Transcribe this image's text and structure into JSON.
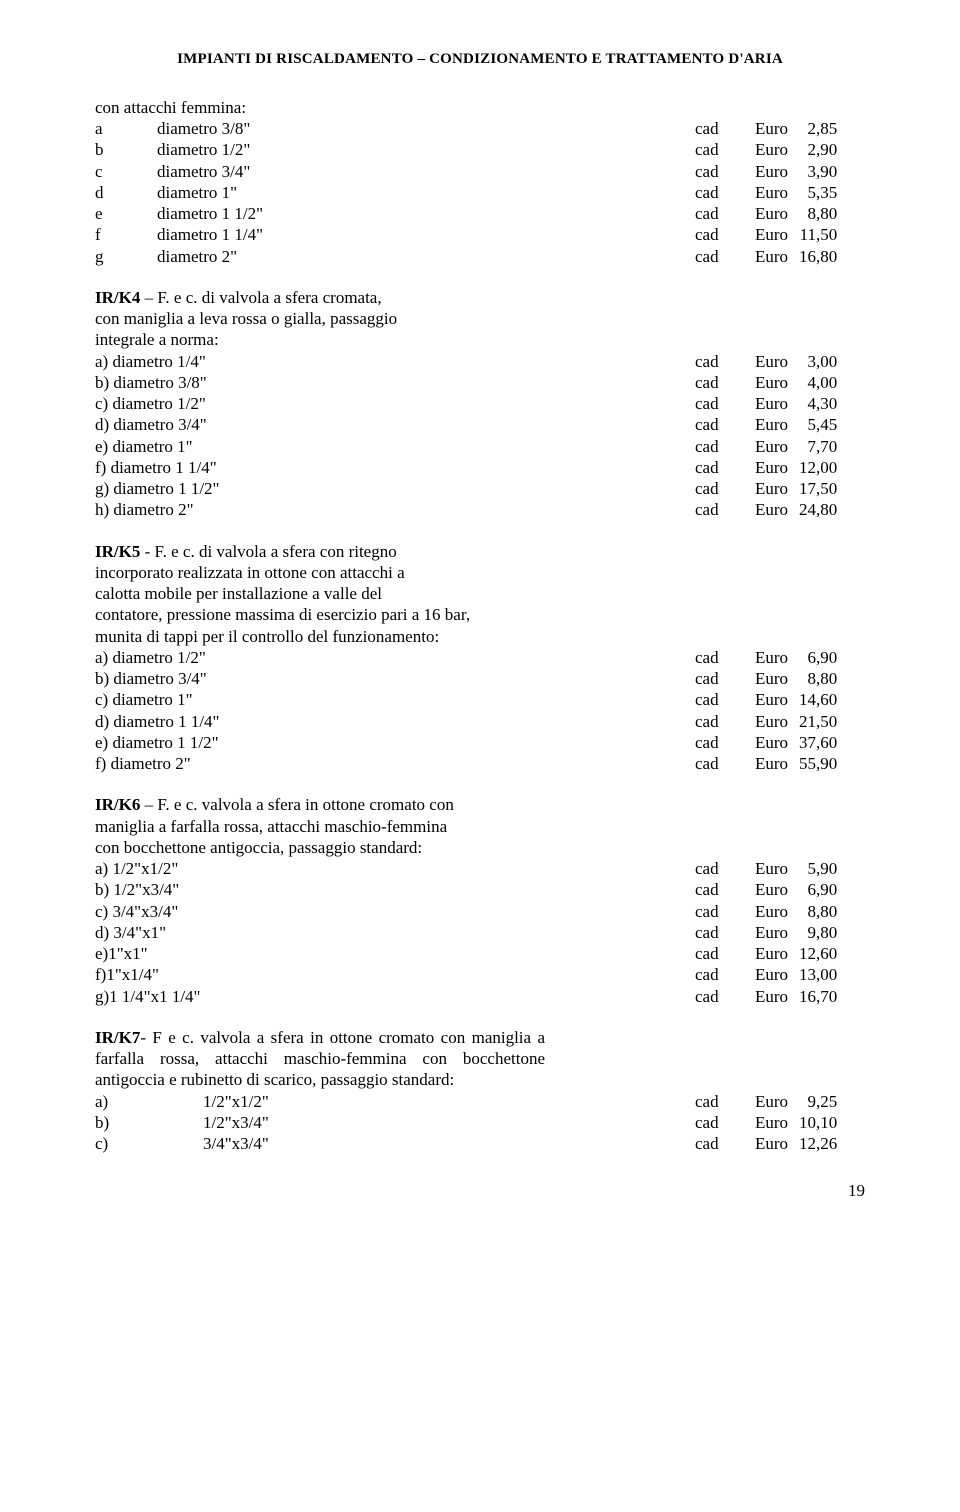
{
  "header": "IMPIANTI DI RISCALDAMENTO – CONDIZIONAMENTO E TRATTAMENTO D'ARIA",
  "unit_label": "cad",
  "currency": "Euro",
  "page_number": "19",
  "block0": {
    "intro": "con attacchi femmina:",
    "rows": [
      {
        "label": "a",
        "desc": "diametro 3/8\"",
        "price": "2,85"
      },
      {
        "label": "b",
        "desc": "diametro 1/2\"",
        "price": "2,90"
      },
      {
        "label": "c",
        "desc": "diametro 3/4\"",
        "price": "3,90"
      },
      {
        "label": "d",
        "desc": "diametro 1\"",
        "price": "5,35"
      },
      {
        "label": "e",
        "desc": "diametro 1 1/2\"",
        "price": "8,80"
      },
      {
        "label": "f",
        "desc": "diametro 1 1/4\"",
        "price": "11,50"
      },
      {
        "label": "g",
        "desc": "diametro 2\"",
        "price": "16,80"
      }
    ]
  },
  "block1": {
    "code": "IR/K4",
    "intro_bold": " – F. e c. di valvola a sfera cromata,",
    "intro_rest": "con maniglia a leva rossa o gialla, passaggio\nintegrale a norma:",
    "rows": [
      {
        "desc": "a)  diametro 1/4\"",
        "price": "3,00"
      },
      {
        "desc": "b)  diametro 3/8\"",
        "price": "4,00"
      },
      {
        "desc": "c)  diametro 1/2\"",
        "price": "4,30"
      },
      {
        "desc": "d)  diametro 3/4\"",
        "price": "5,45"
      },
      {
        "desc": "e)  diametro 1\"",
        "price": "7,70"
      },
      {
        "desc": "f)  diametro 1 1/4\"",
        "price": "12,00"
      },
      {
        "desc": "g)  diametro 1 1/2\"",
        "price": "17,50"
      },
      {
        "desc": "h)  diametro 2\"",
        "price": "24,80"
      }
    ]
  },
  "block2": {
    "code": "IR/K5",
    "intro_bold": " - F. e c. di valvola a sfera con ritegno",
    "intro_rest": "incorporato realizzata in ottone con attacchi a\ncalotta mobile per installazione a valle del\ncontatore, pressione massima di esercizio pari a 16 bar,\nmunita di tappi per il controllo del funzionamento:",
    "rows": [
      {
        "desc": "a) diametro 1/2\"",
        "price": "6,90"
      },
      {
        "desc": "b) diametro 3/4\"",
        "price": "8,80"
      },
      {
        "desc": "c) diametro 1\"",
        "price": "14,60"
      },
      {
        "desc": "d) diametro 1 1/4\"",
        "price": "21,50"
      },
      {
        "desc": "e) diametro 1 1/2\"",
        "price": "37,60"
      },
      {
        "desc": "f) diametro 2\"",
        "price": "55,90"
      }
    ]
  },
  "block3": {
    "code": "IR/K6",
    "intro_bold": " – F. e c. valvola a sfera in ottone cromato con",
    "intro_rest": "maniglia a farfalla rossa, attacchi maschio-femmina\ncon bocchettone antigoccia, passaggio standard:",
    "rows": [
      {
        "desc": " a) 1/2\"x1/2\"",
        "price": "5,90"
      },
      {
        "desc": " b) 1/2\"x3/4\"",
        "price": "6,90"
      },
      {
        "desc": " c) 3/4\"x3/4\"",
        "price": "8,80"
      },
      {
        "desc": " d) 3/4\"x1\"",
        "price": "9,80"
      },
      {
        "desc": " e)1\"x1\"",
        "price": "12,60"
      },
      {
        "desc": " f)1\"x1/4\"",
        "price": "13,00"
      },
      {
        "desc": " g)1 1/4\"x1 1/4\"",
        "price": "16,70"
      }
    ]
  },
  "block4": {
    "code": "IR/K7",
    "intro_bold": "- F e c. valvola a sfera in ottone cromato con",
    "intro_rest": "maniglia a farfalla rossa, attacchi maschio-femmina con bocchettone antigoccia e rubinetto di scarico, passaggio standard:",
    "rows": [
      {
        "label": "a)",
        "desc": "1/2\"x1/2\"",
        "price": "9,25"
      },
      {
        "label": "b)",
        "desc": "1/2\"x3/4\"",
        "price": "10,10"
      },
      {
        "label": "c)",
        "desc": "3/4\"x3/4\"",
        "price": "12,26"
      }
    ]
  }
}
